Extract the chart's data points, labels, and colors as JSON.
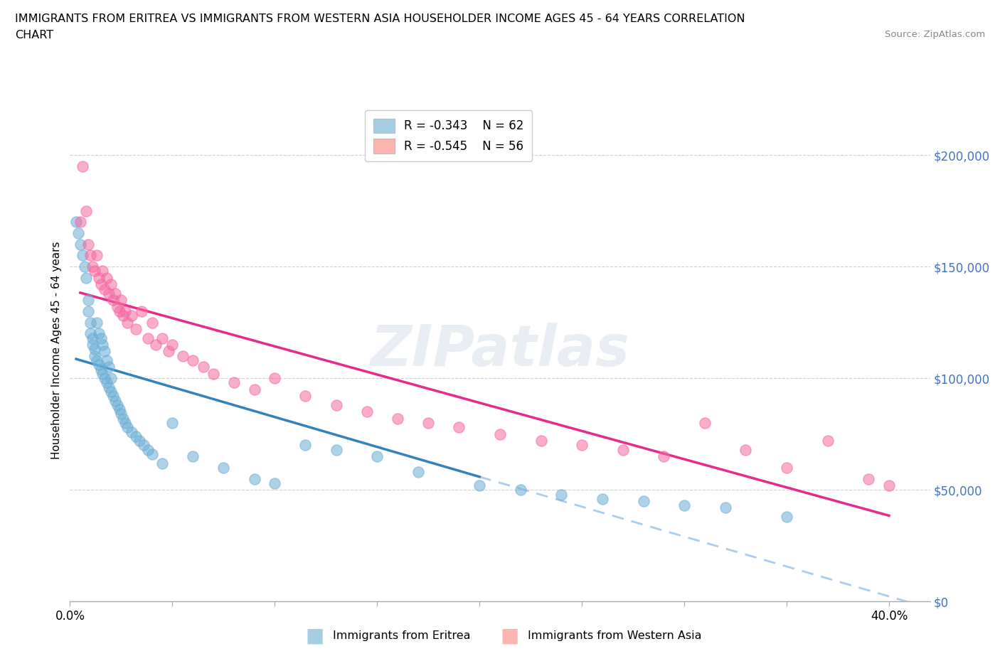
{
  "title_line1": "IMMIGRANTS FROM ERITREA VS IMMIGRANTS FROM WESTERN ASIA HOUSEHOLDER INCOME AGES 45 - 64 YEARS CORRELATION",
  "title_line2": "CHART",
  "source": "Source: ZipAtlas.com",
  "ylabel": "Householder Income Ages 45 - 64 years",
  "xlim": [
    0.0,
    0.42
  ],
  "ylim": [
    0,
    225000
  ],
  "yticks": [
    0,
    50000,
    100000,
    150000,
    200000
  ],
  "xtick_positions": [
    0.0,
    0.05,
    0.1,
    0.15,
    0.2,
    0.25,
    0.3,
    0.35,
    0.4
  ],
  "eritrea_color": "#6baed6",
  "eritrea_line_color": "#3182bd",
  "western_asia_color": "#f768a1",
  "western_asia_line_color": "#e7298a",
  "dash_color": "#aaccee",
  "eritrea_R": -0.343,
  "eritrea_N": 62,
  "western_asia_R": -0.545,
  "western_asia_N": 56,
  "ytick_color": "#4472c4",
  "grid_color": "#d0d0d0",
  "spine_color": "#aaaaaa",
  "watermark_text": "ZIPatlas",
  "legend_label_eritrea": "Immigrants from Eritrea",
  "legend_label_western": "Immigrants from Western Asia",
  "legend_color_eritrea": "#a6cee3",
  "legend_color_western": "#fbb4ae",
  "eritrea_x": [
    0.003,
    0.004,
    0.005,
    0.006,
    0.007,
    0.008,
    0.009,
    0.009,
    0.01,
    0.01,
    0.011,
    0.011,
    0.012,
    0.012,
    0.013,
    0.013,
    0.014,
    0.014,
    0.015,
    0.015,
    0.016,
    0.016,
    0.017,
    0.017,
    0.018,
    0.018,
    0.019,
    0.019,
    0.02,
    0.02,
    0.021,
    0.022,
    0.023,
    0.024,
    0.025,
    0.026,
    0.027,
    0.028,
    0.03,
    0.032,
    0.034,
    0.036,
    0.038,
    0.04,
    0.045,
    0.05,
    0.06,
    0.075,
    0.09,
    0.1,
    0.115,
    0.13,
    0.15,
    0.17,
    0.2,
    0.22,
    0.24,
    0.26,
    0.28,
    0.3,
    0.32,
    0.35
  ],
  "eritrea_y": [
    170000,
    165000,
    160000,
    155000,
    150000,
    145000,
    135000,
    130000,
    125000,
    120000,
    118000,
    115000,
    113000,
    110000,
    125000,
    108000,
    120000,
    106000,
    118000,
    104000,
    115000,
    102000,
    112000,
    100000,
    108000,
    98000,
    105000,
    96000,
    100000,
    94000,
    92000,
    90000,
    88000,
    86000,
    84000,
    82000,
    80000,
    78000,
    76000,
    74000,
    72000,
    70000,
    68000,
    66000,
    62000,
    80000,
    65000,
    60000,
    55000,
    53000,
    70000,
    68000,
    65000,
    58000,
    52000,
    50000,
    48000,
    46000,
    45000,
    43000,
    42000,
    38000
  ],
  "western_asia_x": [
    0.005,
    0.006,
    0.008,
    0.009,
    0.01,
    0.011,
    0.012,
    0.013,
    0.014,
    0.015,
    0.016,
    0.017,
    0.018,
    0.019,
    0.02,
    0.021,
    0.022,
    0.023,
    0.024,
    0.025,
    0.026,
    0.027,
    0.028,
    0.03,
    0.032,
    0.035,
    0.038,
    0.04,
    0.042,
    0.045,
    0.048,
    0.05,
    0.055,
    0.06,
    0.065,
    0.07,
    0.08,
    0.09,
    0.1,
    0.115,
    0.13,
    0.145,
    0.16,
    0.175,
    0.19,
    0.21,
    0.23,
    0.25,
    0.27,
    0.29,
    0.31,
    0.33,
    0.35,
    0.37,
    0.39,
    0.4
  ],
  "western_asia_y": [
    170000,
    195000,
    175000,
    160000,
    155000,
    150000,
    148000,
    155000,
    145000,
    142000,
    148000,
    140000,
    145000,
    138000,
    142000,
    135000,
    138000,
    132000,
    130000,
    135000,
    128000,
    130000,
    125000,
    128000,
    122000,
    130000,
    118000,
    125000,
    115000,
    118000,
    112000,
    115000,
    110000,
    108000,
    105000,
    102000,
    98000,
    95000,
    100000,
    92000,
    88000,
    85000,
    82000,
    80000,
    78000,
    75000,
    72000,
    70000,
    68000,
    65000,
    80000,
    68000,
    60000,
    72000,
    55000,
    52000
  ]
}
